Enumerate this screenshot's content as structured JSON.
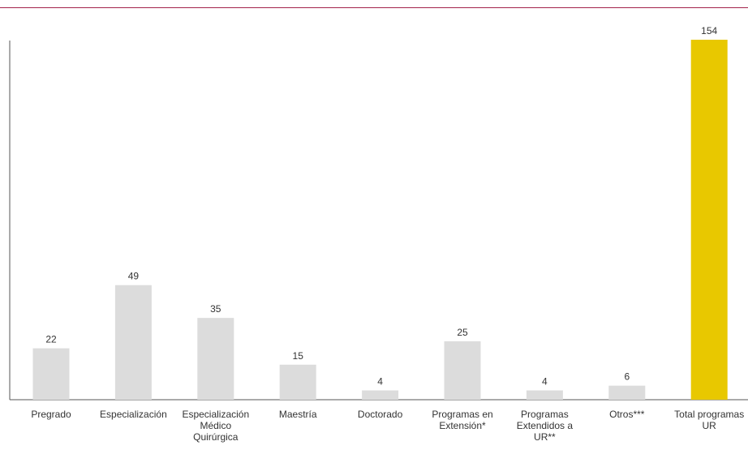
{
  "chart_data": {
    "type": "bar",
    "categories": [
      "Pregrado",
      "Especialización",
      "Especialización\nMédico\nQuirúrgica",
      "Maestría",
      "Doctorado",
      "Programas en\nExtensión*",
      "Programas\nExtendidos a\nUR**",
      "Otros***",
      "Total programas\nUR"
    ],
    "values": [
      22,
      49,
      35,
      15,
      4,
      25,
      4,
      6,
      154
    ],
    "colors": [
      "#dcdcdc",
      "#dcdcdc",
      "#dcdcdc",
      "#dcdcdc",
      "#dcdcdc",
      "#dcdcdc",
      "#dcdcdc",
      "#dcdcdc",
      "#e8c800"
    ],
    "title": "",
    "xlabel": "",
    "ylabel": "",
    "ylim": [
      0,
      154
    ],
    "grid": false,
    "legend": "none"
  }
}
